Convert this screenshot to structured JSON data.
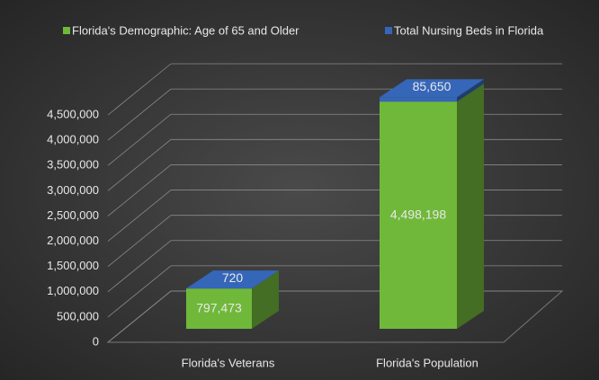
{
  "chart_data": {
    "type": "bar3d_stacked",
    "categories": [
      "Florida's Veterans",
      "Florida's Population"
    ],
    "series": [
      {
        "name": "Florida's Demographic: Age of 65 and Older",
        "color": "#70b83a",
        "values": [
          797473,
          4498198
        ],
        "value_labels": [
          "797,473",
          "4,498,198"
        ]
      },
      {
        "name": "Total Nursing Beds in Florida",
        "color": "#3566b8",
        "values": [
          720,
          85650
        ],
        "value_labels": [
          "720",
          "85,650"
        ]
      }
    ],
    "ylim": [
      0,
      4500000
    ],
    "yticks": [
      0,
      {
        "value": 500000,
        "label": "500,000"
      },
      {
        "value": 1000000,
        "label": "1,000,000"
      },
      {
        "value": 1500000,
        "label": "1,500,000"
      },
      {
        "value": 2000000,
        "label": "2,000,000"
      },
      {
        "value": 2500000,
        "label": "2,500,000"
      },
      {
        "value": 3000000,
        "label": "3,000,000"
      },
      {
        "value": 3500000,
        "label": "3,500,000"
      },
      {
        "value": 4000000,
        "label": "4,000,000"
      },
      {
        "value": 4500000,
        "label": "4,500,000"
      }
    ],
    "grid": true,
    "legend": "top"
  }
}
